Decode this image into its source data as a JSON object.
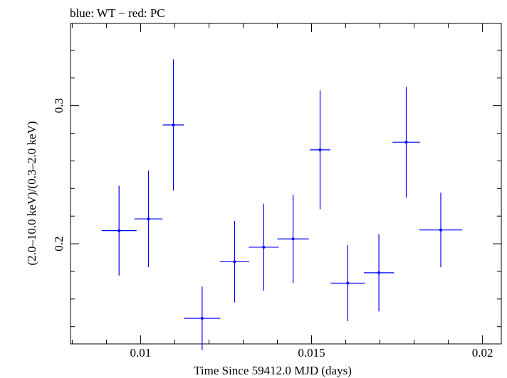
{
  "chart_data": {
    "type": "scatter",
    "title": "blue: WT − red: PC",
    "xlabel": "Time Since 59412.0 MJD (days)",
    "ylabel": "(2.0–10.0 keV)/(0.3–2.0 keV)",
    "xlim": [
      0.00795,
      0.02055
    ],
    "ylim": [
      0.1275,
      0.3595
    ],
    "x_ticks": [
      0.01,
      0.015,
      0.02
    ],
    "x_tick_labels": [
      "0.01",
      "0.015",
      "0.02"
    ],
    "y_ticks": [
      0.2,
      0.3
    ],
    "y_tick_labels": [
      "0.2",
      "0.3"
    ],
    "grid": false,
    "colors": {
      "WT": "#0000ff",
      "PC": "#ff0000",
      "axes": "#000000"
    },
    "series": [
      {
        "name": "WT",
        "color": "#0000ff",
        "points": [
          {
            "x": 0.00937,
            "xerr": 0.00051,
            "y": 0.2095,
            "yerr": 0.0325
          },
          {
            "x": 0.01023,
            "xerr": 0.00041,
            "y": 0.218,
            "yerr": 0.035
          },
          {
            "x": 0.01096,
            "xerr": 0.00031,
            "y": 0.286,
            "yerr": 0.0475
          },
          {
            "x": 0.0118,
            "xerr": 0.00053,
            "y": 0.146,
            "yerr": 0.023
          },
          {
            "x": 0.01275,
            "xerr": 0.00043,
            "y": 0.187,
            "yerr": 0.0295
          },
          {
            "x": 0.0136,
            "xerr": 0.00044,
            "y": 0.1975,
            "yerr": 0.0315
          },
          {
            "x": 0.01446,
            "xerr": 0.00046,
            "y": 0.2035,
            "yerr": 0.032
          },
          {
            "x": 0.01525,
            "xerr": 0.0003,
            "y": 0.268,
            "yerr": 0.043
          },
          {
            "x": 0.01606,
            "xerr": 0.0005,
            "y": 0.1715,
            "yerr": 0.0275
          },
          {
            "x": 0.01697,
            "xerr": 0.00044,
            "y": 0.179,
            "yerr": 0.028
          },
          {
            "x": 0.01777,
            "xerr": 0.0004,
            "y": 0.2735,
            "yerr": 0.04
          },
          {
            "x": 0.01878,
            "xerr": 0.00063,
            "y": 0.21,
            "yerr": 0.027
          }
        ]
      }
    ]
  }
}
